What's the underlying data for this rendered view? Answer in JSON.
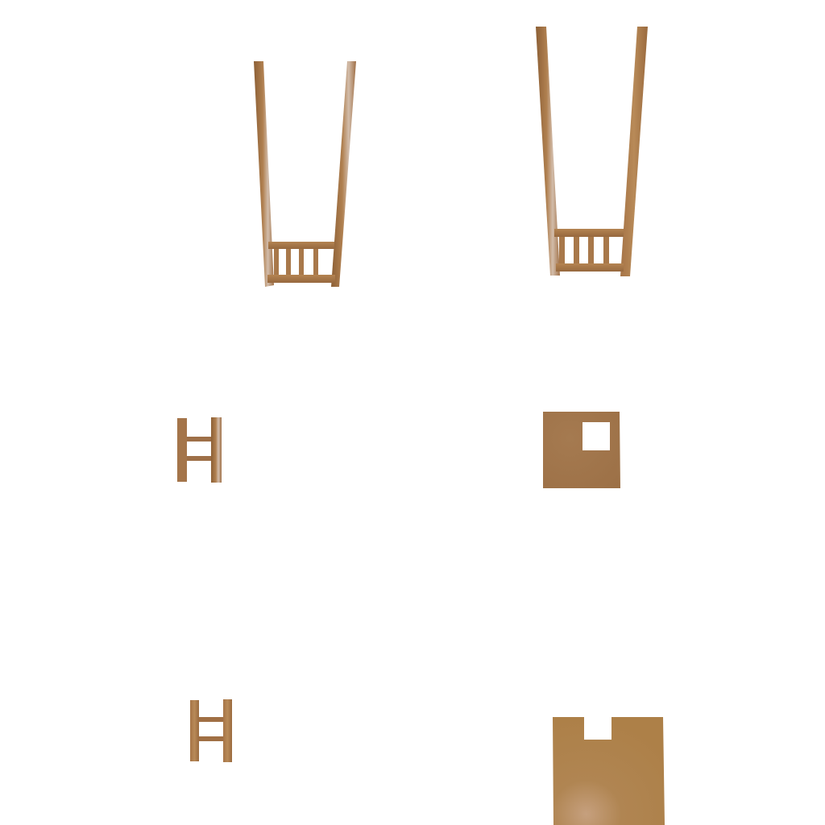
{
  "scene": {
    "background": "#ffffff",
    "palette": {
      "wood_dark": "#8a5e34",
      "wood_mid": "#a9784a",
      "wood_light": "#c49a6e",
      "highlight": "#d8c4b4",
      "panel_fill": "#a6784c",
      "panel_fill_2": "#b0834e"
    },
    "pieces": [
      {
        "name": "chair-back-piece-left"
      },
      {
        "name": "chair-back-piece-right"
      },
      {
        "name": "ladder-piece-small-upper"
      },
      {
        "name": "panel-piece-with-square-cutout"
      },
      {
        "name": "ladder-piece-small-lower"
      },
      {
        "name": "panel-piece-with-top-notch"
      }
    ]
  }
}
